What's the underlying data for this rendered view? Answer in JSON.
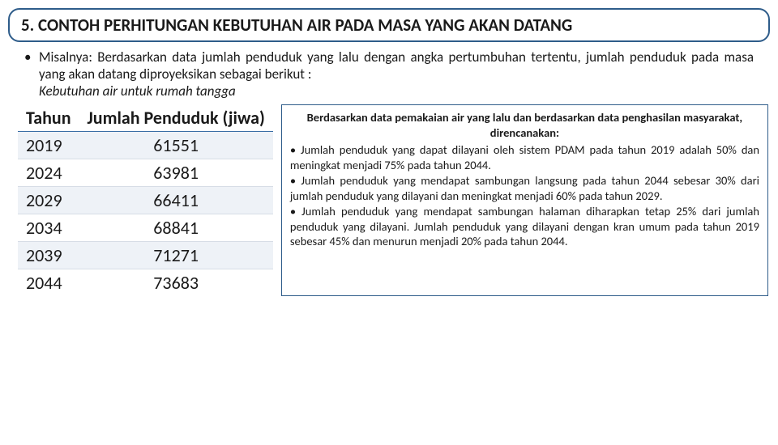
{
  "title": "5. CONTOH PERHITUNGAN KEBUTUHAN AIR PADA MASA YANG AKAN DATANG",
  "intro": {
    "main": "Misalnya: Berdasarkan data jumlah penduduk yang lalu dengan angka pertumbuhan tertentu, jumlah penduduk pada masa yang akan datang diproyeksikan sebagai berikut :",
    "italic": "Kebutuhan air untuk rumah tangga"
  },
  "table": {
    "type": "table",
    "columns": [
      "Tahun",
      "Jumlah Penduduk (jiwa)"
    ],
    "rows": [
      [
        "2019",
        "61551"
      ],
      [
        "2024",
        "63981"
      ],
      [
        "2029",
        "66411"
      ],
      [
        "2034",
        "68841"
      ],
      [
        "2039",
        "71271"
      ],
      [
        "2044",
        "73683"
      ]
    ],
    "header_border_color": "#3a6ea5",
    "row_alt_bg": "#eef2f7",
    "font_size": 22
  },
  "sidebox": {
    "heading": "Berdasarkan data pemakaian air yang lalu dan berdasarkan data penghasilan masyarakat, direncanakan:",
    "points": [
      "• Jumlah penduduk yang dapat dilayani oleh sistem PDAM pada tahun 2019 adalah 50% dan meningkat menjadi 75% pada tahun 2044.",
      "• Jumlah penduduk yang mendapat sambungan langsung pada tahun 2044 sebesar 30% dari jumlah penduduk yang dilayani dan meningkat menjadi 60% pada tahun 2029.",
      "• Jumlah penduduk yang mendapat sambungan halaman diharapkan tetap 25% dari jumlah penduduk yang dilayani. Jumlah penduduk yang dilayani dengan kran umum pada tahun 2019 sebesar 45% dan menurun menjadi 20% pada tahun 2044."
    ]
  },
  "colors": {
    "box_border": "#2e5c8a",
    "background": "#ffffff",
    "text": "#1a1a1a"
  }
}
